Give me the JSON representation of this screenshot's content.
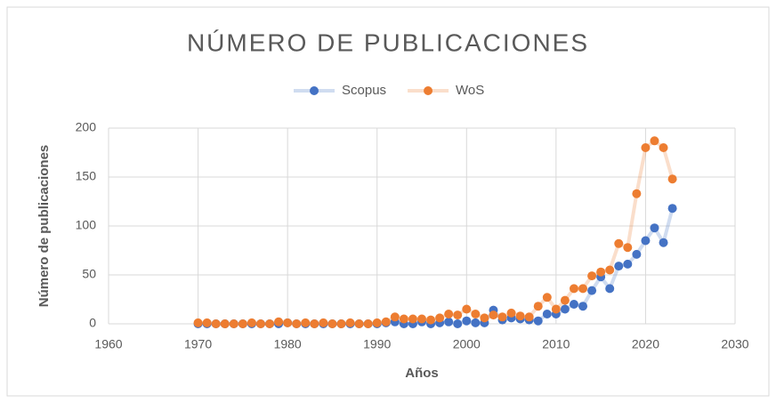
{
  "chart_data": {
    "type": "scatter",
    "title": "NÚMERO DE PUBLICACIONES",
    "x_label": "Años",
    "y_label": "Número de publicaciones",
    "x": [
      1970,
      1971,
      1972,
      1973,
      1974,
      1975,
      1976,
      1977,
      1978,
      1979,
      1980,
      1981,
      1982,
      1983,
      1984,
      1985,
      1986,
      1987,
      1988,
      1989,
      1990,
      1991,
      1992,
      1993,
      1994,
      1995,
      1996,
      1997,
      1998,
      1999,
      2000,
      2001,
      2002,
      2003,
      2004,
      2005,
      2006,
      2007,
      2008,
      2009,
      2010,
      2011,
      2012,
      2013,
      2014,
      2015,
      2016,
      2017,
      2018,
      2019,
      2020,
      2021,
      2022,
      2023
    ],
    "series": [
      {
        "name": "Scopus",
        "color": "#4472c4",
        "values": [
          0,
          0,
          0,
          0,
          0,
          0,
          0,
          0,
          0,
          0,
          1,
          0,
          0,
          0,
          0,
          0,
          0,
          0,
          0,
          0,
          0,
          1,
          2,
          0,
          0,
          2,
          0,
          1,
          2,
          0,
          3,
          1,
          1,
          14,
          4,
          6,
          5,
          4,
          3,
          10,
          10,
          15,
          20,
          18,
          34,
          48,
          36,
          59,
          61,
          71,
          85,
          98,
          83,
          118
        ]
      },
      {
        "name": "WoS",
        "color": "#ed7d31",
        "values": [
          1,
          1,
          0,
          0,
          0,
          0,
          1,
          0,
          0,
          2,
          1,
          0,
          1,
          0,
          1,
          0,
          0,
          1,
          0,
          0,
          1,
          2,
          7,
          5,
          5,
          5,
          4,
          6,
          10,
          9,
          15,
          10,
          6,
          9,
          7,
          11,
          8,
          7,
          18,
          27,
          15,
          24,
          36,
          36,
          49,
          53,
          55,
          82,
          78,
          133,
          180,
          187,
          180,
          148
        ]
      }
    ],
    "xlim": [
      1960,
      2030
    ],
    "xticks": [
      1960,
      1970,
      1980,
      1990,
      2000,
      2010,
      2020,
      2030
    ],
    "ylim": [
      0,
      200
    ],
    "yticks": [
      0,
      50,
      100,
      150,
      200
    ],
    "grid": true,
    "legend": "top"
  }
}
